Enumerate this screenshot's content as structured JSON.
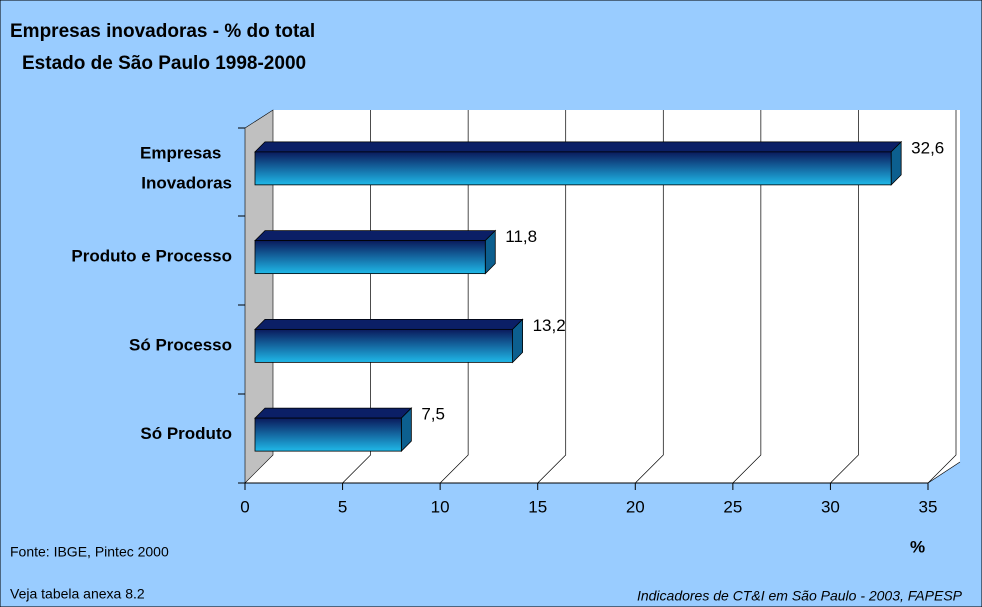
{
  "chart_data": {
    "type": "bar3d",
    "title": "Empresas inovadoras - % do total",
    "subtitle": "Estado de São Paulo 1998-2000",
    "categories": [
      "Empresas Inovadoras",
      "Produto e Processo",
      "Só Processo",
      "Só Produto"
    ],
    "values": [
      32.6,
      11.8,
      13.2,
      7.5
    ],
    "value_labels": [
      "32,6",
      "11,8",
      "13,2",
      "7,5"
    ],
    "color": "#1fb8e8",
    "xlim": [
      0,
      35
    ],
    "xticks": [
      0,
      5,
      10,
      15,
      20,
      25,
      30,
      35
    ],
    "xlabel": "%",
    "grid": true,
    "source": "Fonte: IBGE, Pintec 2000",
    "note": "Veja tabela anexa 8.2",
    "credit": "Indicadores de CT&I em São Paulo - 2003, FAPESP"
  }
}
